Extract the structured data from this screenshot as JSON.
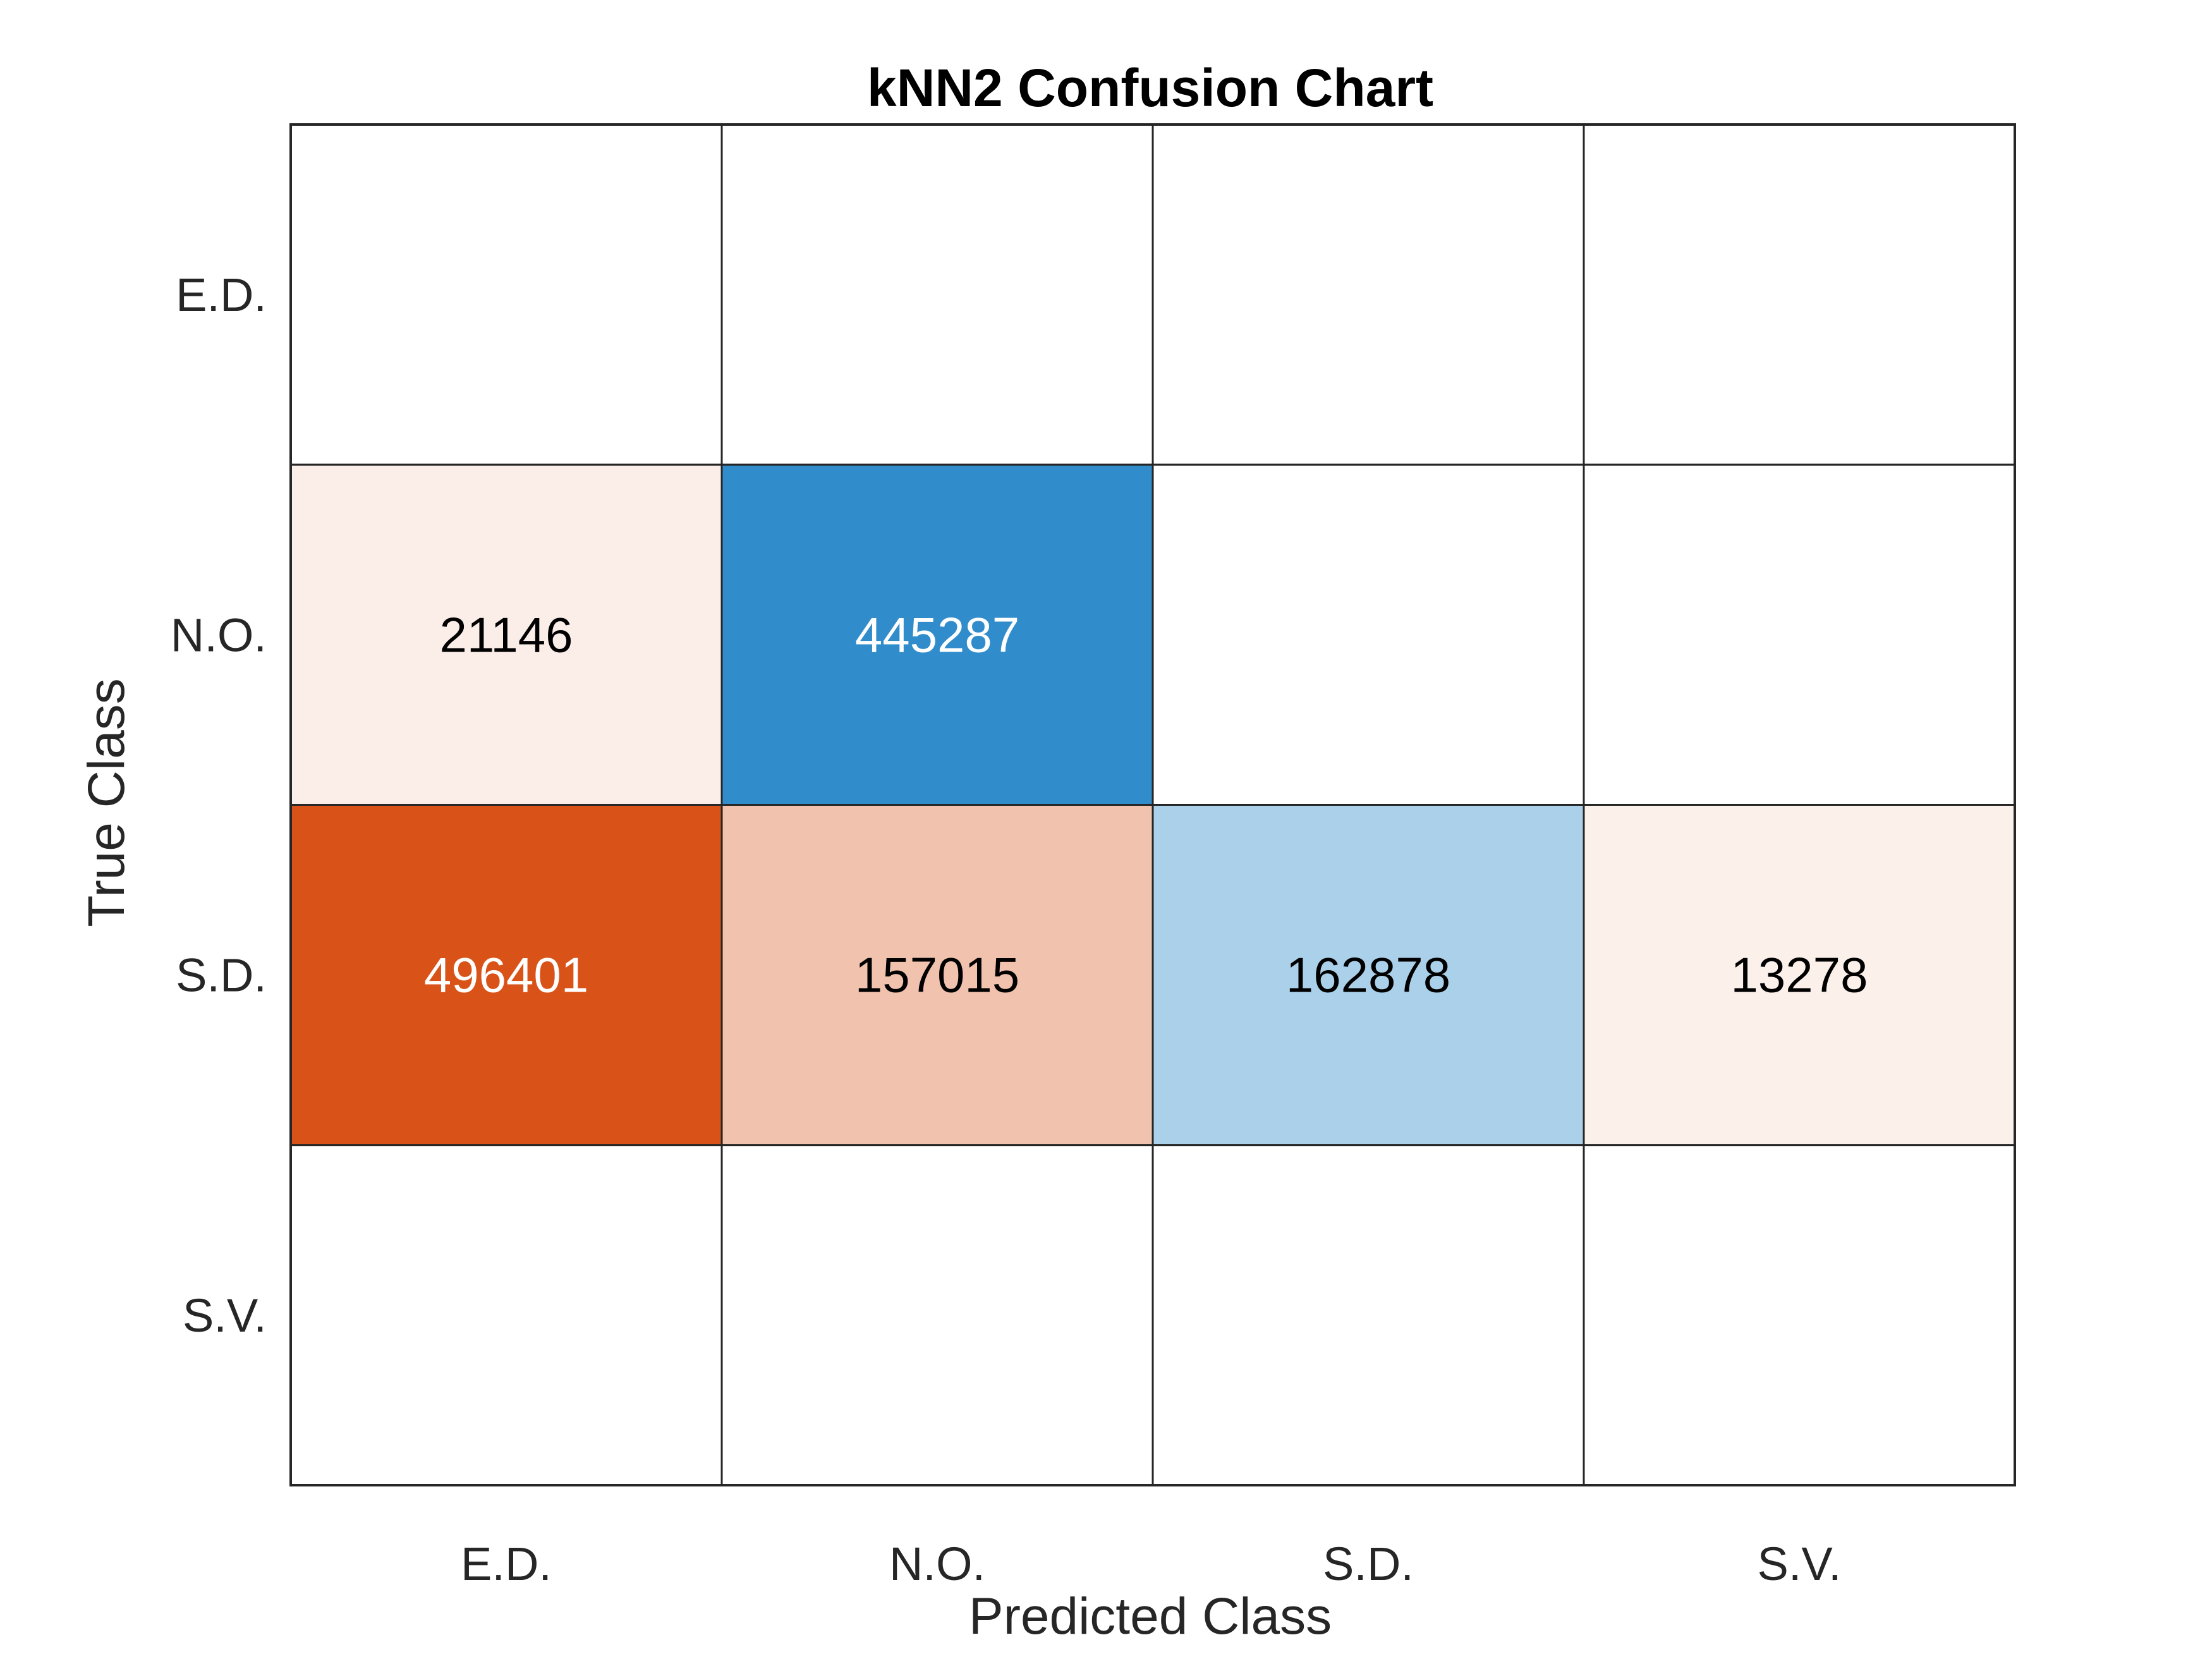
{
  "chart_data": {
    "type": "heatmap",
    "title": "kNN2 Confusion Chart",
    "xlabel": "Predicted Class",
    "ylabel": "True Class",
    "x_categories": [
      "E.D.",
      "N.O.",
      "S.D.",
      "S.V."
    ],
    "y_categories": [
      "E.D.",
      "N.O.",
      "S.D.",
      "S.V."
    ],
    "matrix": [
      [
        null,
        null,
        null,
        null
      ],
      [
        21146,
        445287,
        null,
        null
      ],
      [
        496401,
        157015,
        162878,
        13278
      ],
      [
        null,
        null,
        null,
        null
      ]
    ],
    "colors": {
      "diagonal": "#1a80c4",
      "off_diagonal": "#d95319",
      "background": "#ffffff",
      "grid": "#262626",
      "dark_text": "#000000",
      "light_text": "#ffffff"
    }
  }
}
